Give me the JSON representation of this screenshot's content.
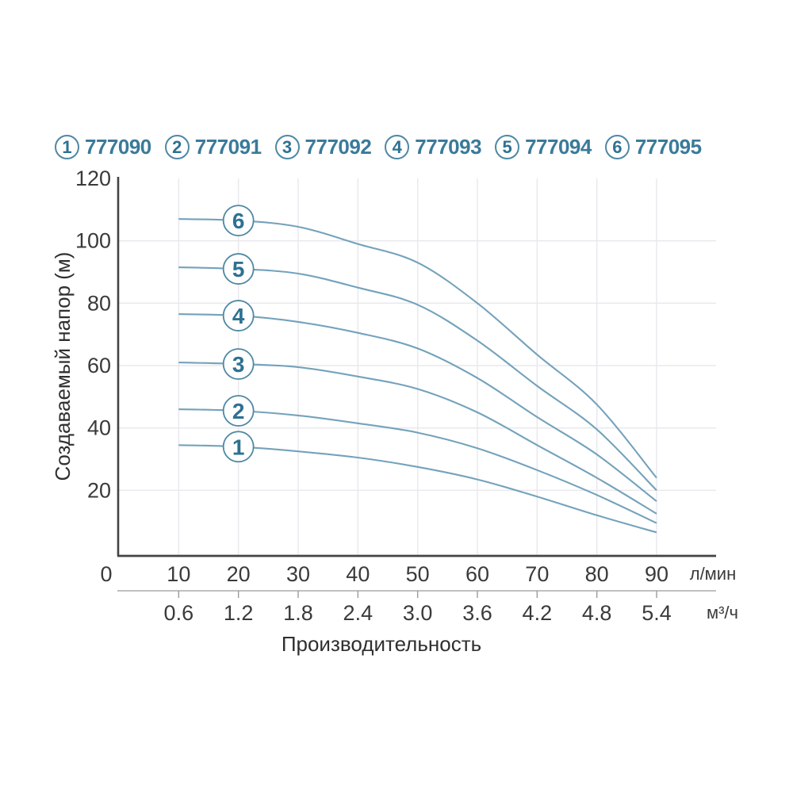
{
  "legend": {
    "items": [
      {
        "num": "1",
        "code": "777090"
      },
      {
        "num": "2",
        "code": "777091"
      },
      {
        "num": "3",
        "code": "777092"
      },
      {
        "num": "4",
        "code": "777093"
      },
      {
        "num": "5",
        "code": "777094"
      },
      {
        "num": "6",
        "code": "777095"
      }
    ]
  },
  "y_axis": {
    "title": "Создаваемый напор (м)",
    "ticks": [
      "120",
      "100",
      "80",
      "60",
      "40",
      "20"
    ]
  },
  "x_axis_lmin": {
    "ticks": [
      "0",
      "10",
      "20",
      "30",
      "40",
      "50",
      "60",
      "70",
      "80",
      "90"
    ],
    "unit": "л/мин"
  },
  "x_axis_m3h": {
    "ticks": [
      "0.6",
      "1.2",
      "1.8",
      "2.4",
      "3.0",
      "3.6",
      "4.2",
      "4.8",
      "5.4"
    ],
    "unit": "м³/ч"
  },
  "x_title": "Производительность",
  "colors": {
    "curve": "#74a2bb",
    "grid": "#e8e8ee",
    "axis": "#434343",
    "secondary_axis": "#9b9b9b",
    "teal_text": "#3a7a9a",
    "circle_stroke": "#4e88a4",
    "circle_number": "#2e7192"
  },
  "chart_data": {
    "type": "line",
    "title": "",
    "xlabel": "Производительность",
    "ylabel": "Создаваемый напор (м)",
    "x_units": [
      "л/мин",
      "м³/ч"
    ],
    "x_lmin": [
      10,
      20,
      30,
      40,
      50,
      60,
      70,
      80,
      90
    ],
    "x_m3h": [
      0.6,
      1.2,
      1.8,
      2.4,
      3.0,
      3.6,
      4.2,
      4.8,
      5.4
    ],
    "xlim_lmin": [
      0,
      100
    ],
    "ylim": [
      0,
      120
    ],
    "y_gridlines": [
      20,
      40,
      60,
      80,
      100
    ],
    "x_gridlines": [
      10,
      20,
      30,
      40,
      50,
      60,
      70,
      80,
      90
    ],
    "grid": true,
    "legend_position": "top",
    "label_x_lmin": 20,
    "series": [
      {
        "name": "1",
        "code": "777090",
        "values": [
          34.5,
          34,
          32.5,
          30.5,
          27.5,
          23.5,
          18,
          12,
          6.5
        ]
      },
      {
        "name": "2",
        "code": "777091",
        "values": [
          46,
          45.5,
          44,
          41.5,
          38.5,
          33.5,
          26.5,
          18.5,
          9.5
        ]
      },
      {
        "name": "3",
        "code": "777092",
        "values": [
          61,
          60.5,
          59.5,
          56.5,
          52.5,
          45,
          34.5,
          24,
          12.5
        ]
      },
      {
        "name": "4",
        "code": "777093",
        "values": [
          76.5,
          76,
          74,
          70.5,
          65.5,
          56,
          43.5,
          31.5,
          16.5
        ]
      },
      {
        "name": "5",
        "code": "777094",
        "values": [
          91.5,
          91,
          89.5,
          85,
          79.5,
          68,
          53.5,
          39.5,
          20
        ]
      },
      {
        "name": "6",
        "code": "777095",
        "values": [
          107,
          106.5,
          104.5,
          99,
          93,
          80,
          63.5,
          47.5,
          24
        ]
      }
    ]
  }
}
